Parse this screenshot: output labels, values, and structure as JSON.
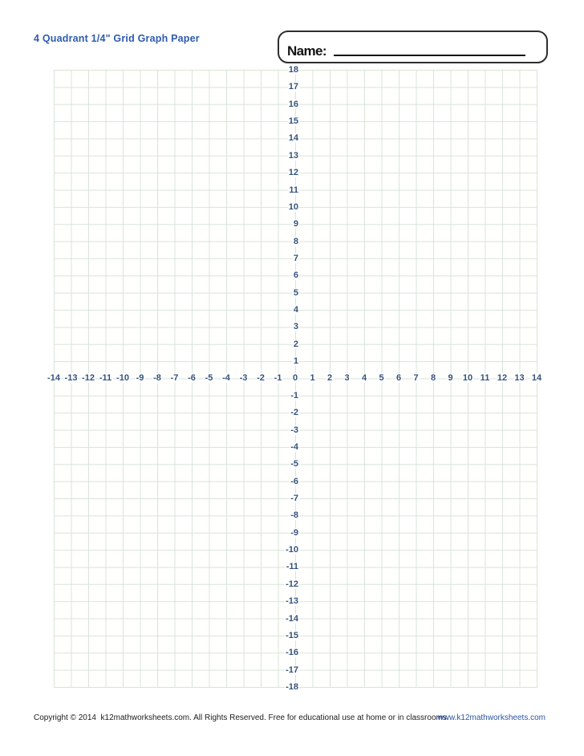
{
  "page": {
    "title": "4 Quadrant 1/4\" Grid Graph Paper"
  },
  "name_box": {
    "label": "Name:"
  },
  "graph": {
    "type": "coordinate-grid",
    "description": "blank 4-quadrant 1/4 inch graph paper grid",
    "x_min": -14,
    "x_max": 14,
    "y_min": -18,
    "y_max": 18,
    "x_axis_labels": [
      -14,
      -13,
      -12,
      -11,
      -10,
      -9,
      -8,
      -7,
      -6,
      -5,
      -4,
      -3,
      -2,
      -1,
      0,
      1,
      2,
      3,
      4,
      5,
      6,
      7,
      8,
      9,
      10,
      11,
      12,
      13,
      14
    ],
    "y_axis_labels": [
      18,
      17,
      16,
      15,
      14,
      13,
      12,
      11,
      10,
      9,
      8,
      7,
      6,
      5,
      4,
      3,
      2,
      1,
      -1,
      -2,
      -3,
      -4,
      -5,
      -6,
      -7,
      -8,
      -9,
      -10,
      -11,
      -12,
      -13,
      -14,
      -15,
      -16,
      -17,
      -18
    ]
  },
  "footer": {
    "copyright": "Copyright © 2014  k12mathworksheets.com. All Rights Reserved. Free for educational use at home or in classrooms.",
    "website": "www.k12mathworksheets.com"
  },
  "colors": {
    "title": "#2e5bae",
    "axis_number": "#35537d",
    "grid_line": "#d9e4d9",
    "website_link": "#2b55a4"
  }
}
